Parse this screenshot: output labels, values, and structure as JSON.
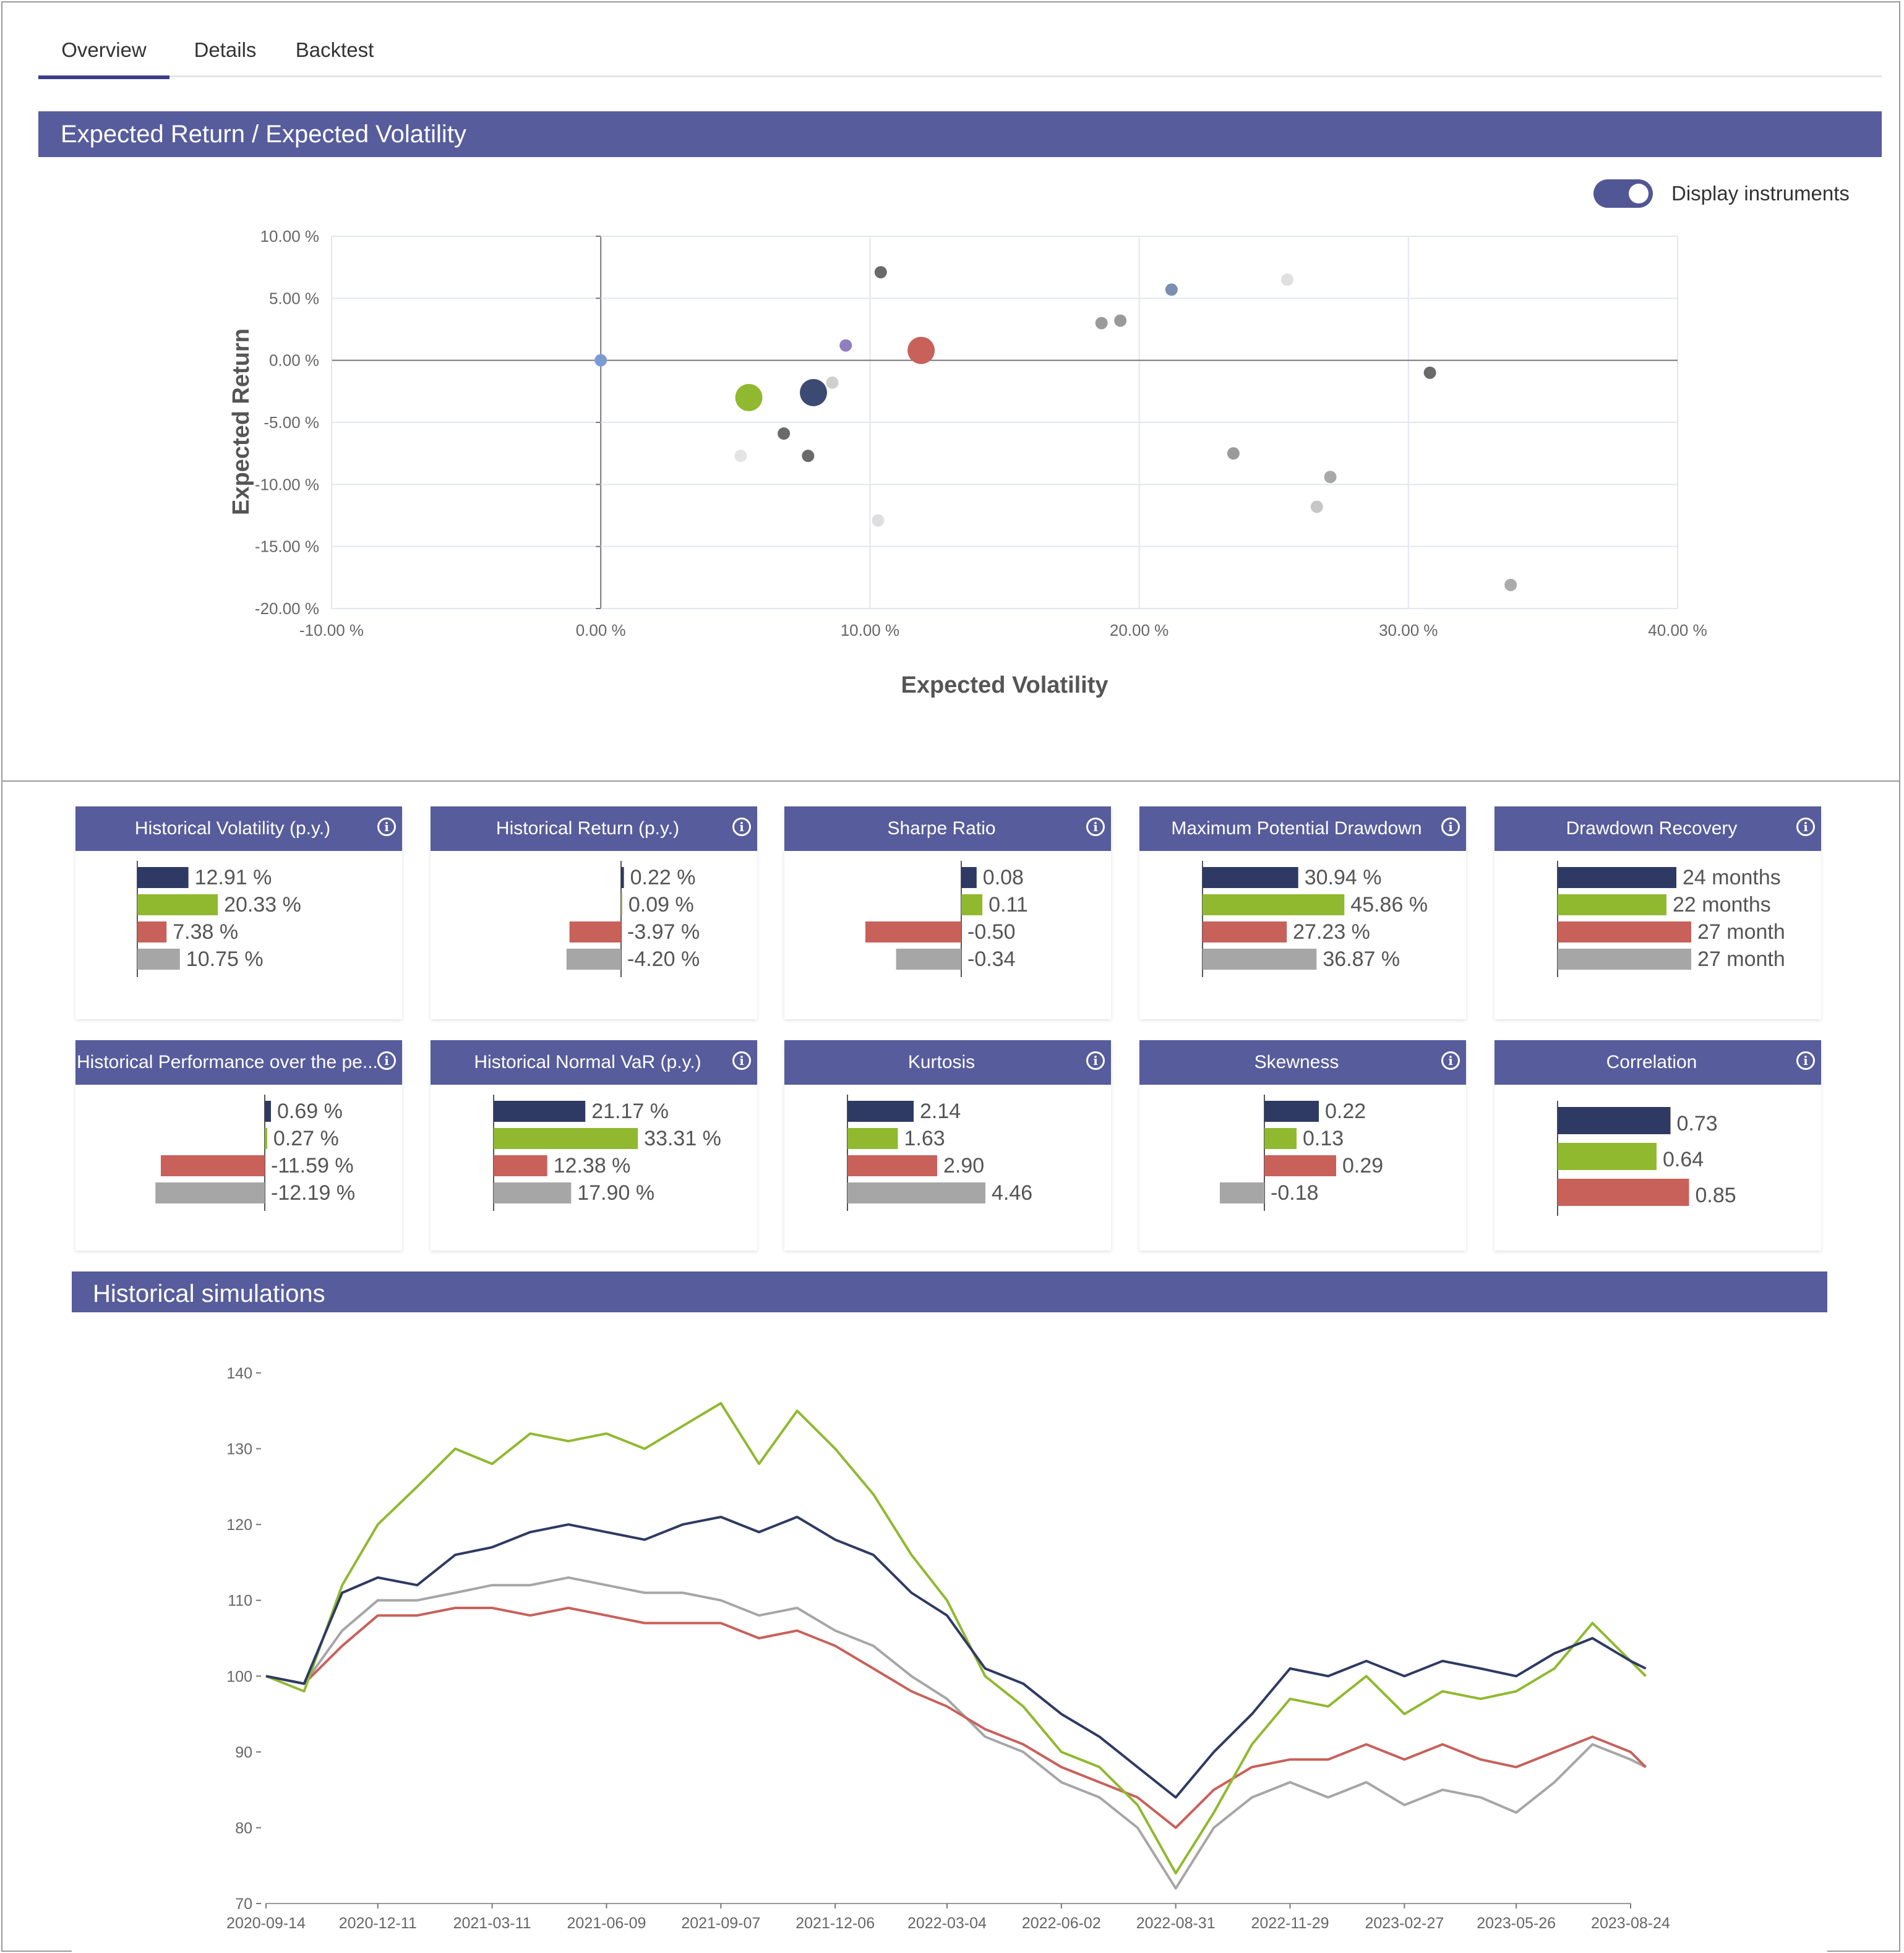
{
  "tabs": [
    {
      "label": "Overview",
      "active": true
    },
    {
      "label": "Details",
      "active": false
    },
    {
      "label": "Backtest",
      "active": false
    }
  ],
  "scatter_panel": {
    "title": "Expected Return / Expected Volatility",
    "toggle_label": "Display instruments",
    "toggle_on": true
  },
  "simulations_panel": {
    "title": "Historical simulations"
  },
  "colors": {
    "header": "#575c9c",
    "navy": "#2e3a63",
    "green": "#90b930",
    "red": "#c8615a",
    "gray": "#a6a6a6"
  },
  "metric_cards": [
    {
      "title": "Historical Volatility (p.y.)",
      "values": [
        12.91,
        20.33,
        7.38,
        10.75
      ],
      "labels": [
        "12.91 %",
        "20.33 %",
        "7.38 %",
        "10.75 %"
      ]
    },
    {
      "title": "Historical Return (p.y.)",
      "values": [
        0.22,
        0.09,
        -3.97,
        -4.2
      ],
      "labels": [
        "0.22 %",
        "0.09 %",
        "-3.97 %",
        "-4.20 %"
      ]
    },
    {
      "title": "Sharpe Ratio",
      "values": [
        0.08,
        0.11,
        -0.5,
        -0.34
      ],
      "labels": [
        "0.08",
        "0.11",
        "-0.50",
        "-0.34"
      ]
    },
    {
      "title": "Maximum Potential Drawdown",
      "values": [
        30.94,
        45.86,
        27.23,
        36.87
      ],
      "labels": [
        "30.94 %",
        "45.86 %",
        "27.23 %",
        "36.87 %"
      ]
    },
    {
      "title": "Drawdown Recovery",
      "values": [
        24,
        22,
        27,
        27
      ],
      "labels": [
        "24 months",
        "22 months",
        "27 month",
        "27 month"
      ]
    },
    {
      "title": "Historical Performance over the pe...",
      "values": [
        0.69,
        0.27,
        -11.59,
        -12.19
      ],
      "labels": [
        "0.69 %",
        "0.27 %",
        "-11.59 %",
        "-12.19 %"
      ]
    },
    {
      "title": "Historical Normal VaR (p.y.)",
      "values": [
        21.17,
        33.31,
        12.38,
        17.9
      ],
      "labels": [
        "21.17 %",
        "33.31 %",
        "12.38 %",
        "17.90 %"
      ]
    },
    {
      "title": "Kurtosis",
      "values": [
        2.14,
        1.63,
        2.9,
        4.46
      ],
      "labels": [
        "2.14",
        "1.63",
        "2.90",
        "4.46"
      ]
    },
    {
      "title": "Skewness",
      "values": [
        0.22,
        0.13,
        0.29,
        -0.18
      ],
      "labels": [
        "0.22",
        "0.13",
        "0.29",
        "-0.18"
      ]
    },
    {
      "title": "Correlation",
      "values": [
        0.73,
        0.64,
        0.85
      ],
      "labels": [
        "0.73",
        "0.64",
        "0.85"
      ]
    }
  ],
  "chart_data": [
    {
      "type": "scatter",
      "xlabel": "Expected Volatility",
      "ylabel": "Expected Return",
      "xlim": [
        -10,
        40
      ],
      "ylim": [
        -20,
        10
      ],
      "xticks": [
        "-10.00 %",
        "0.00 %",
        "10.00 %",
        "20.00 %",
        "30.00 %",
        "40.00 %"
      ],
      "yticks": [
        "10.00 %",
        "5.00 %",
        "0.00 %",
        "-5.00 %",
        "-10.00 %",
        "-15.00 %",
        "-20.00 %"
      ],
      "grid": true,
      "points": [
        {
          "x": 0.0,
          "y": 0.0,
          "size": "small",
          "color": "#7b9bd6"
        },
        {
          "x": 5.5,
          "y": -3.0,
          "size": "large",
          "color": "#90b930"
        },
        {
          "x": 7.9,
          "y": -2.6,
          "size": "large",
          "color": "#3c4a73"
        },
        {
          "x": 11.9,
          "y": 0.8,
          "size": "large",
          "color": "#c8615a"
        },
        {
          "x": 9.1,
          "y": 1.2,
          "size": "small",
          "color": "#8f7fbf"
        },
        {
          "x": 10.4,
          "y": 7.1,
          "size": "small",
          "color": "#6a6a6a"
        },
        {
          "x": 8.6,
          "y": -1.8,
          "size": "small",
          "color": "#cfcfcf"
        },
        {
          "x": 6.8,
          "y": -5.9,
          "size": "small",
          "color": "#6a6a6a"
        },
        {
          "x": 7.7,
          "y": -7.7,
          "size": "small",
          "color": "#6a6a6a"
        },
        {
          "x": 5.2,
          "y": -7.7,
          "size": "small",
          "color": "#e4e4e4"
        },
        {
          "x": 10.3,
          "y": -12.9,
          "size": "small",
          "color": "#dedede"
        },
        {
          "x": 18.6,
          "y": 3.0,
          "size": "small",
          "color": "#9a9a9a"
        },
        {
          "x": 19.3,
          "y": 3.2,
          "size": "small",
          "color": "#9a9a9a"
        },
        {
          "x": 21.2,
          "y": 5.7,
          "size": "small",
          "color": "#7a8fb0"
        },
        {
          "x": 25.5,
          "y": 6.5,
          "size": "small",
          "color": "#e0e0e0"
        },
        {
          "x": 30.8,
          "y": -1.0,
          "size": "small",
          "color": "#6a6a6a"
        },
        {
          "x": 23.5,
          "y": -7.5,
          "size": "small",
          "color": "#9a9a9a"
        },
        {
          "x": 27.1,
          "y": -9.4,
          "size": "small",
          "color": "#a8a8a8"
        },
        {
          "x": 26.6,
          "y": -11.8,
          "size": "small",
          "color": "#c6c6c6"
        },
        {
          "x": 33.8,
          "y": -18.1,
          "size": "small",
          "color": "#ababab"
        }
      ]
    },
    {
      "type": "line",
      "ylim": [
        70,
        140
      ],
      "yticks": [
        "140",
        "130",
        "120",
        "110",
        "100",
        "90",
        "80",
        "70"
      ],
      "xticks": [
        "2020-09-14",
        "2020-12-11",
        "2021-03-11",
        "2021-06-09",
        "2021-09-07",
        "2021-12-06",
        "2022-03-04",
        "2022-06-02",
        "2022-08-31",
        "2022-11-29",
        "2023-02-27",
        "2023-05-26",
        "2023-08-24"
      ],
      "x_points": [
        "2020-09-14",
        "2020-10-14",
        "2020-11-13",
        "2020-12-11",
        "2021-01-11",
        "2021-02-10",
        "2021-03-11",
        "2021-04-10",
        "2021-05-10",
        "2021-06-09",
        "2021-07-09",
        "2021-08-08",
        "2021-09-07",
        "2021-10-07",
        "2021-11-06",
        "2021-12-06",
        "2022-01-05",
        "2022-02-04",
        "2022-03-04",
        "2022-04-03",
        "2022-05-03",
        "2022-06-02",
        "2022-07-02",
        "2022-08-01",
        "2022-08-31",
        "2022-09-30",
        "2022-10-30",
        "2022-11-29",
        "2022-12-29",
        "2023-01-28",
        "2023-02-27",
        "2023-03-29",
        "2023-04-28",
        "2023-05-26",
        "2023-06-25",
        "2023-07-25",
        "2023-08-24",
        "2023-09-05"
      ],
      "series": [
        {
          "color": "#2e3a63",
          "values": [
            100,
            99,
            111,
            113,
            112,
            116,
            117,
            119,
            120,
            119,
            118,
            120,
            121,
            119,
            121,
            118,
            116,
            111,
            108,
            101,
            99,
            95,
            92,
            88,
            84,
            90,
            95,
            101,
            100,
            102,
            100,
            102,
            101,
            100,
            103,
            105,
            102,
            101
          ]
        },
        {
          "color": "#90b930",
          "values": [
            100,
            98,
            112,
            120,
            125,
            130,
            128,
            132,
            131,
            132,
            130,
            133,
            136,
            128,
            135,
            130,
            124,
            116,
            110,
            100,
            96,
            90,
            88,
            83,
            74,
            82,
            91,
            97,
            96,
            100,
            95,
            98,
            97,
            98,
            101,
            107,
            102,
            100
          ]
        },
        {
          "color": "#c8615a",
          "values": [
            100,
            99,
            104,
            108,
            108,
            109,
            109,
            108,
            109,
            108,
            107,
            107,
            107,
            105,
            106,
            104,
            101,
            98,
            96,
            93,
            91,
            88,
            86,
            84,
            80,
            85,
            88,
            89,
            89,
            91,
            89,
            91,
            89,
            88,
            90,
            92,
            90,
            88
          ]
        },
        {
          "color": "#a6a6a6",
          "values": [
            100,
            99,
            106,
            110,
            110,
            111,
            112,
            112,
            113,
            112,
            111,
            111,
            110,
            108,
            109,
            106,
            104,
            100,
            97,
            92,
            90,
            86,
            84,
            80,
            72,
            80,
            84,
            86,
            84,
            86,
            83,
            85,
            84,
            82,
            86,
            91,
            89,
            88
          ]
        }
      ]
    }
  ]
}
